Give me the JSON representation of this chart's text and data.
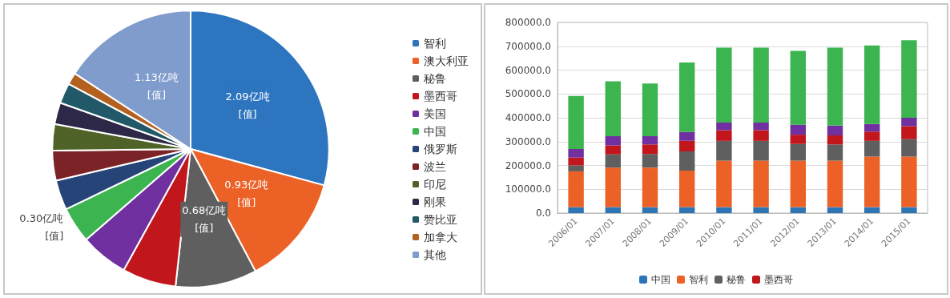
{
  "chart_data": [
    {
      "type": "pie",
      "categories": [
        "智利",
        "澳大利亚",
        "秘鲁",
        "墨西哥",
        "美国",
        "中国",
        "俄罗斯",
        "波兰",
        "印尼",
        "刚果",
        "赞比亚",
        "加拿大",
        "其他"
      ],
      "values": [
        2.09,
        0.93,
        0.68,
        0.45,
        0.4,
        0.3,
        0.25,
        0.25,
        0.22,
        0.18,
        0.17,
        0.1,
        1.13
      ],
      "colors": [
        "#2e75c0",
        "#ec6126",
        "#5f5f5f",
        "#c0161c",
        "#7030a0",
        "#3cb550",
        "#264478",
        "#7b2326",
        "#4f6228",
        "#2e2848",
        "#215968",
        "#b4611f",
        "#7f9ccc"
      ],
      "value_labels": [
        "2.09亿吨\n[值]",
        "0.93亿吨\n[值]",
        "0.68亿吨\n[值]",
        null,
        null,
        "0.30亿吨\n[值]",
        null,
        null,
        null,
        null,
        null,
        null,
        "1.13亿吨\n[值]"
      ],
      "legend": "right"
    },
    {
      "type": "bar",
      "stacked": true,
      "categories": [
        "2006/01",
        "2007/01",
        "2008/01",
        "2009/01",
        "2010/01",
        "2011/01",
        "2012/01",
        "2013/01",
        "2014/01",
        "2015/01"
      ],
      "series": [
        {
          "name": "中国",
          "color": "#2e75b6",
          "values": [
            25000,
            25000,
            25000,
            25000,
            25000,
            25000,
            25000,
            25000,
            25000,
            25000
          ]
        },
        {
          "name": "智利",
          "color": "#ec6126",
          "values": [
            150000,
            166000,
            166000,
            153000,
            195000,
            195000,
            195000,
            195000,
            212000,
            212000
          ]
        },
        {
          "name": "秘鲁",
          "color": "#5f5f5f",
          "values": [
            25000,
            55000,
            57000,
            81000,
            83000,
            83000,
            70000,
            68000,
            66000,
            73000
          ]
        },
        {
          "name": "墨西哥",
          "color": "#c0161c",
          "values": [
            33000,
            38000,
            40000,
            44000,
            45000,
            45000,
            39000,
            38000,
            39000,
            55000
          ]
        },
        {
          "color": "#7030a0",
          "values": [
            36000,
            39000,
            35000,
            37000,
            32000,
            32000,
            42000,
            41000,
            32000,
            35000
          ]
        },
        {
          "color": "#3cb550",
          "values": [
            223000,
            230000,
            221000,
            292000,
            314000,
            314000,
            310000,
            327000,
            329000,
            325000
          ]
        }
      ],
      "ylim": [
        0,
        800000
      ],
      "yticks": [
        {
          "value": 0,
          "label": "0.0"
        },
        {
          "value": 100000,
          "label": "100000.0"
        },
        {
          "value": 200000,
          "label": "200000.0"
        },
        {
          "value": 300000,
          "label": "300000.0"
        },
        {
          "value": 400000,
          "label": "400000.0"
        },
        {
          "value": 500000,
          "label": "500000.0"
        },
        {
          "value": 600000,
          "label": "600000.0"
        },
        {
          "value": 700000,
          "label": "700000.0"
        },
        {
          "value": 800000,
          "label": "800000.0"
        }
      ],
      "grid": "y",
      "legend": "bottom"
    }
  ]
}
